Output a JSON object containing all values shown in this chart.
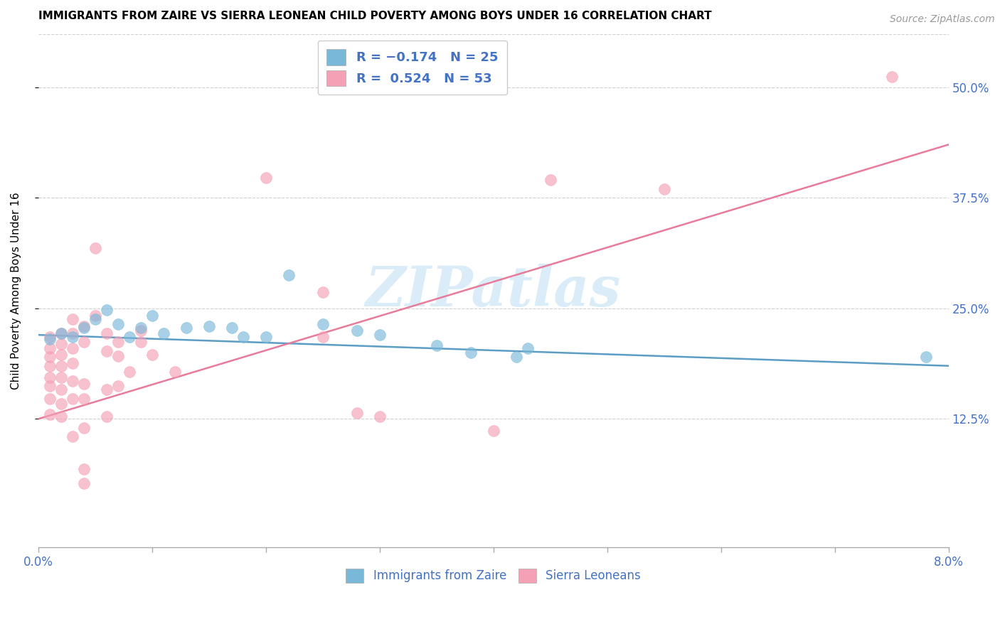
{
  "title": "IMMIGRANTS FROM ZAIRE VS SIERRA LEONEAN CHILD POVERTY AMONG BOYS UNDER 16 CORRELATION CHART",
  "source": "Source: ZipAtlas.com",
  "ylabel": "Child Poverty Among Boys Under 16",
  "ytick_labels": [
    "12.5%",
    "25.0%",
    "37.5%",
    "50.0%"
  ],
  "ytick_values": [
    0.125,
    0.25,
    0.375,
    0.5
  ],
  "xlim": [
    0.0,
    0.08
  ],
  "ylim": [
    -0.02,
    0.56
  ],
  "color_blue": "#7ab8d9",
  "color_pink": "#f4a0b5",
  "trendline_blue": "#5b9dc4",
  "trendline_pink": "#e87a9a",
  "legend_text_color": "#4472c4",
  "watermark": "ZIPatlas",
  "blue_trend": [
    0.0,
    0.22,
    0.08,
    0.185
  ],
  "pink_trend": [
    0.0,
    0.125,
    0.08,
    0.435
  ],
  "blue_points": [
    [
      0.001,
      0.215
    ],
    [
      0.002,
      0.222
    ],
    [
      0.003,
      0.218
    ],
    [
      0.004,
      0.228
    ],
    [
      0.005,
      0.238
    ],
    [
      0.006,
      0.248
    ],
    [
      0.007,
      0.232
    ],
    [
      0.008,
      0.218
    ],
    [
      0.009,
      0.228
    ],
    [
      0.01,
      0.242
    ],
    [
      0.011,
      0.222
    ],
    [
      0.013,
      0.228
    ],
    [
      0.015,
      0.23
    ],
    [
      0.017,
      0.228
    ],
    [
      0.018,
      0.218
    ],
    [
      0.02,
      0.218
    ],
    [
      0.022,
      0.288
    ],
    [
      0.025,
      0.232
    ],
    [
      0.028,
      0.225
    ],
    [
      0.03,
      0.22
    ],
    [
      0.035,
      0.208
    ],
    [
      0.038,
      0.2
    ],
    [
      0.042,
      0.195
    ],
    [
      0.043,
      0.205
    ],
    [
      0.078,
      0.195
    ]
  ],
  "pink_points": [
    [
      0.001,
      0.218
    ],
    [
      0.001,
      0.205
    ],
    [
      0.001,
      0.195
    ],
    [
      0.001,
      0.185
    ],
    [
      0.001,
      0.172
    ],
    [
      0.001,
      0.162
    ],
    [
      0.001,
      0.148
    ],
    [
      0.001,
      0.13
    ],
    [
      0.002,
      0.222
    ],
    [
      0.002,
      0.21
    ],
    [
      0.002,
      0.198
    ],
    [
      0.002,
      0.185
    ],
    [
      0.002,
      0.172
    ],
    [
      0.002,
      0.158
    ],
    [
      0.002,
      0.142
    ],
    [
      0.002,
      0.128
    ],
    [
      0.003,
      0.238
    ],
    [
      0.003,
      0.222
    ],
    [
      0.003,
      0.205
    ],
    [
      0.003,
      0.188
    ],
    [
      0.003,
      0.168
    ],
    [
      0.003,
      0.148
    ],
    [
      0.003,
      0.105
    ],
    [
      0.004,
      0.23
    ],
    [
      0.004,
      0.212
    ],
    [
      0.004,
      0.165
    ],
    [
      0.004,
      0.148
    ],
    [
      0.004,
      0.115
    ],
    [
      0.004,
      0.068
    ],
    [
      0.004,
      0.052
    ],
    [
      0.005,
      0.242
    ],
    [
      0.005,
      0.318
    ],
    [
      0.006,
      0.222
    ],
    [
      0.006,
      0.202
    ],
    [
      0.006,
      0.158
    ],
    [
      0.006,
      0.128
    ],
    [
      0.007,
      0.212
    ],
    [
      0.007,
      0.196
    ],
    [
      0.007,
      0.162
    ],
    [
      0.008,
      0.178
    ],
    [
      0.009,
      0.225
    ],
    [
      0.009,
      0.212
    ],
    [
      0.01,
      0.198
    ],
    [
      0.012,
      0.178
    ],
    [
      0.02,
      0.398
    ],
    [
      0.025,
      0.268
    ],
    [
      0.025,
      0.218
    ],
    [
      0.028,
      0.132
    ],
    [
      0.03,
      0.128
    ],
    [
      0.04,
      0.112
    ],
    [
      0.045,
      0.395
    ],
    [
      0.055,
      0.385
    ],
    [
      0.075,
      0.512
    ]
  ]
}
